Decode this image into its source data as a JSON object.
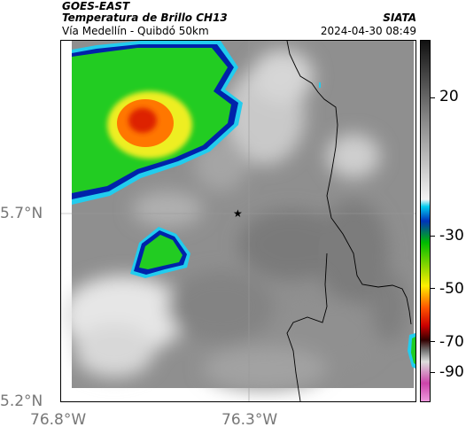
{
  "header": {
    "title": "GOES-EAST",
    "subtitle": "Temperatura de Brillo CH13",
    "route": "Vía Medellín - Quibdó 50km",
    "organization": "SIATA",
    "timestamp": "2024-04-30 08:49"
  },
  "axes": {
    "lat_ticks": [
      "5.7°N",
      "5.2°N"
    ],
    "lon_ticks": [
      "76.8°W",
      "76.3°W"
    ]
  },
  "colorbar": {
    "ticks": [
      "20",
      "-30",
      "-50",
      "-70",
      "-90"
    ],
    "colors": {
      "warm_top": "#111111",
      "warm_mid": "#888888",
      "warm_low": "#f4f4f4",
      "cyan": "#00ccee",
      "blue": "#0033bb",
      "green": "#00bb00",
      "yellow": "#ffee00",
      "orange": "#ff5500",
      "red": "#cc0000",
      "dark_red": "#330000",
      "magenta": "#cc44aa"
    }
  },
  "map": {
    "marker_icon": "star-icon",
    "colors": {
      "background_gray": "#8f8f8f",
      "cloud_green": "#22cc22",
      "cloud_yellow": "#eeee22",
      "cloud_orange": "#ff7700",
      "cloud_red": "#dd2200",
      "cloud_blue": "#0022aa",
      "cloud_cyan": "#22ccee",
      "border_line": "#000000"
    }
  }
}
